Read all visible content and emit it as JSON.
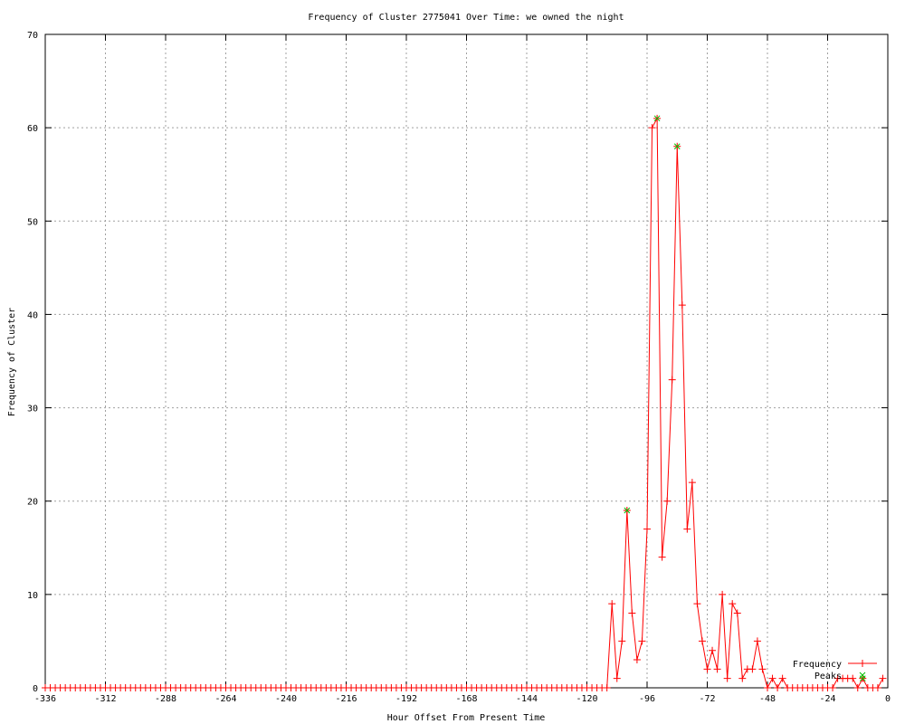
{
  "chart_data": {
    "type": "line",
    "title": "Frequency of Cluster 2775041 Over Time: we owned the night",
    "xlabel": "Hour Offset From Present Time",
    "ylabel": "Frequency of Cluster",
    "xlim": [
      -336,
      0
    ],
    "ylim": [
      0,
      70
    ],
    "xticks": [
      "-336",
      "-312",
      "-288",
      "-264",
      "-240",
      "-216",
      "-192",
      "-168",
      "-144",
      "-120",
      "-96",
      "-72",
      "-48",
      "-24",
      "0"
    ],
    "yticks": [
      "0",
      "10",
      "20",
      "30",
      "40",
      "50",
      "60",
      "70"
    ],
    "grid": true,
    "legend_position": "bottom-right",
    "series": [
      {
        "name": "Frequency",
        "color": "#ff0000",
        "marker": "plus",
        "x_start": -336,
        "x_step": 2,
        "zeros_until": -112,
        "points": [
          [
            -110,
            9
          ],
          [
            -108,
            1
          ],
          [
            -106,
            5
          ],
          [
            -104,
            19
          ],
          [
            -102,
            8
          ],
          [
            -100,
            3
          ],
          [
            -98,
            5
          ],
          [
            -96,
            17
          ],
          [
            -94,
            60
          ],
          [
            -92,
            61
          ],
          [
            -90,
            14
          ],
          [
            -88,
            20
          ],
          [
            -86,
            33
          ],
          [
            -84,
            58
          ],
          [
            -82,
            41
          ],
          [
            -80,
            17
          ],
          [
            -78,
            22
          ],
          [
            -76,
            9
          ],
          [
            -74,
            5
          ],
          [
            -72,
            2
          ],
          [
            -70,
            4
          ],
          [
            -68,
            2
          ],
          [
            -66,
            10
          ],
          [
            -64,
            1
          ],
          [
            -62,
            9
          ],
          [
            -60,
            8
          ],
          [
            -58,
            1
          ],
          [
            -56,
            2
          ],
          [
            -54,
            2
          ],
          [
            -52,
            5
          ],
          [
            -50,
            2
          ],
          [
            -48,
            0
          ],
          [
            -46,
            1
          ],
          [
            -44,
            0
          ],
          [
            -42,
            1
          ],
          [
            -40,
            0
          ],
          [
            -38,
            0
          ],
          [
            -36,
            0
          ],
          [
            -34,
            0
          ],
          [
            -32,
            0
          ],
          [
            -30,
            0
          ],
          [
            -28,
            0
          ],
          [
            -26,
            0
          ],
          [
            -24,
            0
          ],
          [
            -22,
            0
          ],
          [
            -20,
            1
          ],
          [
            -18,
            1
          ],
          [
            -16,
            1
          ],
          [
            -14,
            1
          ],
          [
            -12,
            0
          ],
          [
            -10,
            1
          ],
          [
            -8,
            0
          ],
          [
            -6,
            0
          ],
          [
            -4,
            0
          ],
          [
            -2,
            1
          ]
        ]
      },
      {
        "name": "Peaks",
        "color": "#00c000",
        "marker": "x",
        "points": [
          [
            -104,
            19
          ],
          [
            -92,
            61
          ],
          [
            -84,
            58
          ],
          [
            -10,
            1
          ]
        ]
      }
    ]
  }
}
